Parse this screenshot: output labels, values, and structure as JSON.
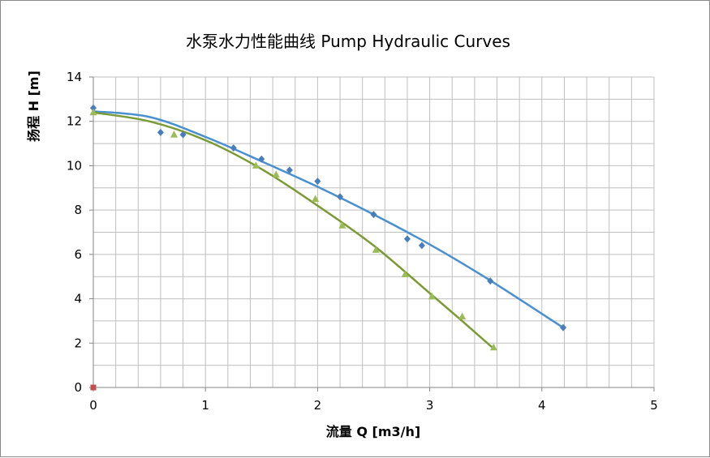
{
  "chart_data": {
    "type": "scatter",
    "title": "水泵水力性能曲线 Pump Hydraulic Curves",
    "xlabel": "流量 Q [m3/h]",
    "ylabel": "扬程 H [m]",
    "xlim": [
      0,
      5
    ],
    "ylim": [
      0,
      14
    ],
    "x_ticks": [
      0,
      1,
      2,
      3,
      4,
      5
    ],
    "y_ticks": [
      0,
      2,
      4,
      6,
      8,
      10,
      12,
      14
    ],
    "x_minor_step": 0.2,
    "y_minor_step": 1,
    "grid": true,
    "legend": "none",
    "series": [
      {
        "marker": "diamond",
        "color": "#4a7ebb",
        "points": [
          [
            0,
            12.6
          ],
          [
            0.6,
            11.5
          ],
          [
            0.8,
            11.4
          ],
          [
            1.25,
            10.8
          ],
          [
            1.5,
            10.3
          ],
          [
            1.75,
            9.8
          ],
          [
            2.0,
            9.3
          ],
          [
            2.2,
            8.6
          ],
          [
            2.5,
            7.8
          ],
          [
            2.8,
            6.7
          ],
          [
            2.93,
            6.4
          ],
          [
            3.54,
            4.8
          ],
          [
            4.19,
            2.7
          ]
        ],
        "trendline": {
          "color": "#4a90d0",
          "x_range": [
            0,
            4.19
          ],
          "points": [
            [
              0,
              12.45
            ],
            [
              0.5,
              12.2
            ],
            [
              1.0,
              11.3
            ],
            [
              1.5,
              10.2
            ],
            [
              2.0,
              9.05
            ],
            [
              2.5,
              7.8
            ],
            [
              3.0,
              6.45
            ],
            [
              3.5,
              4.95
            ],
            [
              4.19,
              2.7
            ]
          ]
        }
      },
      {
        "marker": "triangle",
        "color": "#9bbb59",
        "points": [
          [
            0,
            12.4
          ],
          [
            0.72,
            11.4
          ],
          [
            1.45,
            10.0
          ],
          [
            1.63,
            9.6
          ],
          [
            1.98,
            8.5
          ],
          [
            2.22,
            7.3
          ],
          [
            2.52,
            6.2
          ],
          [
            2.78,
            5.1
          ],
          [
            3.02,
            4.1
          ],
          [
            3.29,
            3.2
          ],
          [
            3.57,
            1.8
          ]
        ],
        "trendline": {
          "color": "#7a9a36",
          "x_range": [
            0,
            3.57
          ],
          "points": [
            [
              0,
              12.4
            ],
            [
              0.5,
              12.0
            ],
            [
              1.0,
              11.15
            ],
            [
              1.5,
              9.85
            ],
            [
              2.0,
              8.2
            ],
            [
              2.5,
              6.4
            ],
            [
              3.0,
              4.25
            ],
            [
              3.3,
              2.95
            ],
            [
              3.57,
              1.75
            ]
          ]
        }
      },
      {
        "marker": "square",
        "color": "#c0504d",
        "points": [
          [
            0,
            0
          ]
        ]
      }
    ]
  }
}
